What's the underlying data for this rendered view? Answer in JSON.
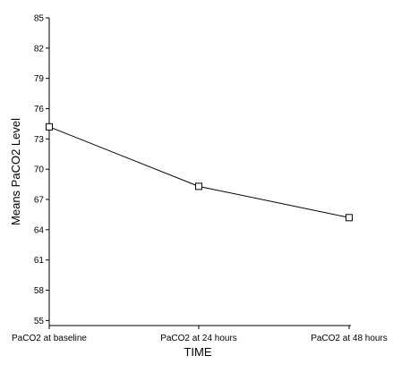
{
  "chart_data": {
    "type": "line",
    "title": "",
    "xlabel": "TIME",
    "ylabel": "Means PaCO2 Level",
    "categories": [
      "PaCO2 at baseline",
      "PaCO2 at 24 hours",
      "PaCO2 at 48 hours"
    ],
    "series": [
      {
        "values": [
          74.2,
          68.3,
          65.2
        ],
        "marker": "open-square",
        "color": "#000000"
      }
    ],
    "y_ticks": [
      55,
      58,
      61,
      64,
      67,
      70,
      73,
      76,
      79,
      82,
      85
    ],
    "ylim": [
      54.5,
      85
    ],
    "grid": false,
    "legend": "none"
  }
}
